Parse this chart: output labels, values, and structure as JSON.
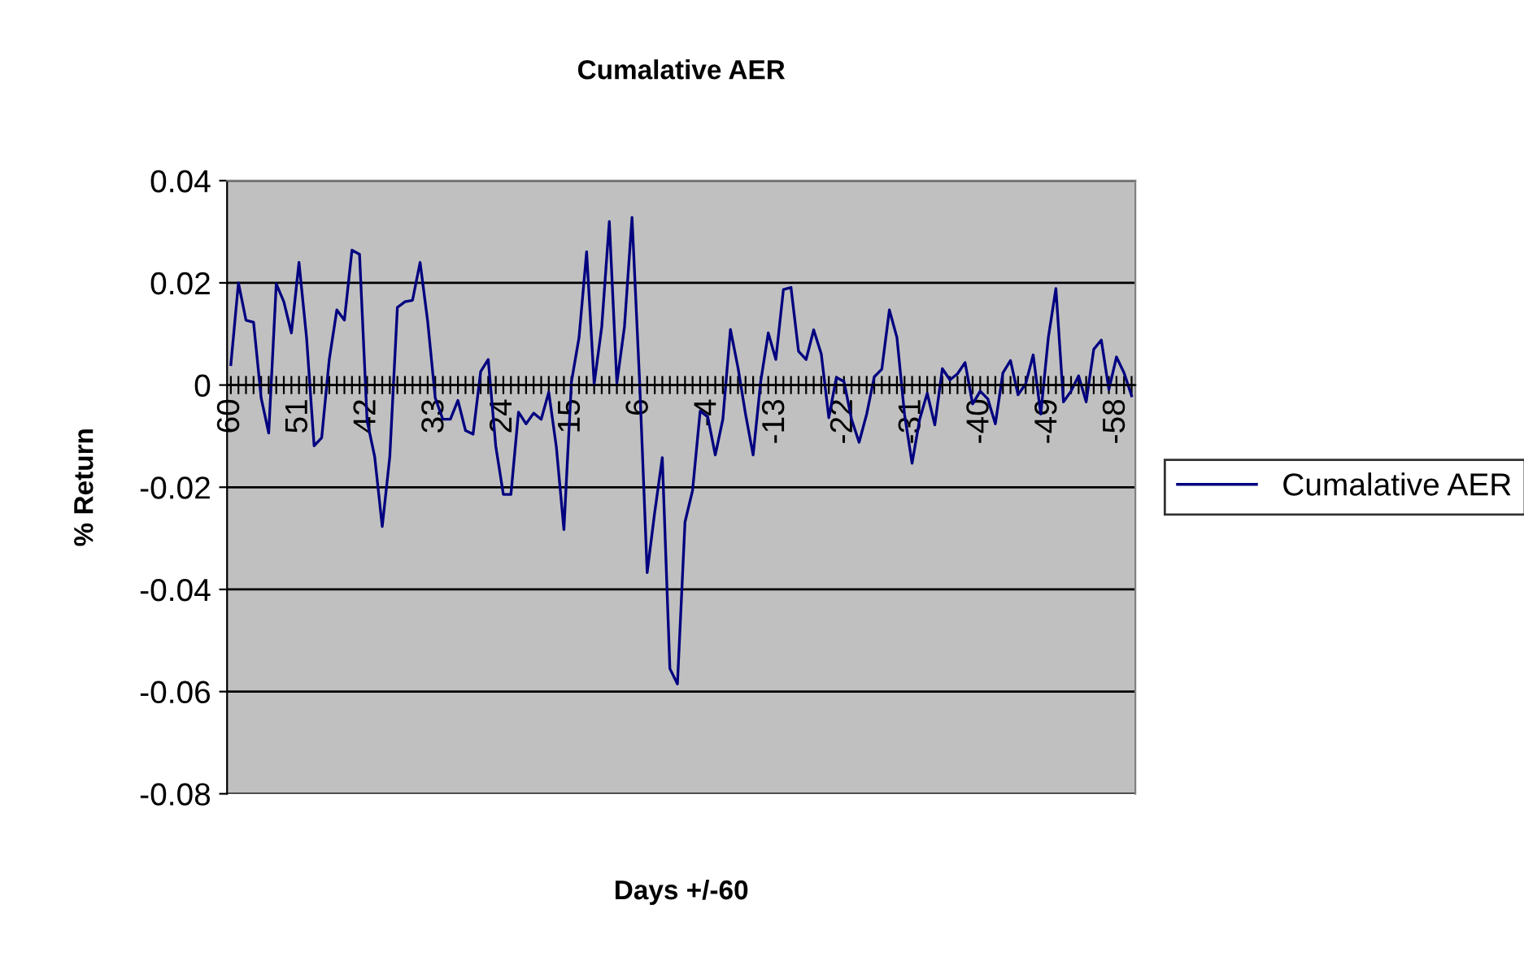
{
  "chart_data": {
    "type": "line",
    "title": "Cumalative AER",
    "xlabel": "Days +/-60",
    "ylabel": "% Return",
    "categories": [
      "60",
      null,
      null,
      null,
      null,
      null,
      null,
      null,
      null,
      "51",
      null,
      null,
      null,
      null,
      null,
      null,
      null,
      null,
      "42",
      null,
      null,
      null,
      null,
      null,
      null,
      null,
      null,
      "33",
      null,
      null,
      null,
      null,
      null,
      null,
      null,
      null,
      "24",
      null,
      null,
      null,
      null,
      null,
      null,
      null,
      null,
      "15",
      null,
      null,
      null,
      null,
      null,
      null,
      null,
      null,
      "6",
      null,
      null,
      null,
      null,
      null,
      null,
      null,
      null,
      "-4",
      null,
      null,
      null,
      null,
      null,
      null,
      null,
      null,
      "-13",
      null,
      null,
      null,
      null,
      null,
      null,
      null,
      null,
      "-22",
      null,
      null,
      null,
      null,
      null,
      null,
      null,
      null,
      "-31",
      null,
      null,
      null,
      null,
      null,
      null,
      null,
      null,
      "-40",
      null,
      null,
      null,
      null,
      null,
      null,
      null,
      null,
      "-49",
      null,
      null,
      null,
      null,
      null,
      null,
      null,
      null,
      "-58",
      null,
      null
    ],
    "series": [
      {
        "name": "Cumalative AER",
        "color": "#000080",
        "values": [
          0.004,
          0.02,
          0.0127,
          0.0123,
          -0.0025,
          -0.0094,
          0.0198,
          0.0163,
          0.0102,
          0.024,
          0.0093,
          -0.0119,
          -0.0103,
          0.005,
          0.0147,
          0.0127,
          0.0264,
          0.0256,
          -0.007,
          -0.014,
          -0.0277,
          -0.014,
          0.0152,
          0.0163,
          0.0166,
          0.024,
          0.0125,
          -0.0025,
          -0.0067,
          -0.0067,
          -0.003,
          -0.0089,
          -0.0096,
          0.0026,
          0.005,
          -0.012,
          -0.0214,
          -0.0214,
          -0.0053,
          -0.0076,
          -0.0055,
          -0.0067,
          -0.0014,
          -0.0121,
          -0.0283,
          0.0007,
          0.0093,
          0.0261,
          0.0002,
          0.0114,
          0.032,
          0.0004,
          0.0114,
          0.0328,
          0.0007,
          -0.0367,
          -0.0249,
          -0.0142,
          -0.0555,
          -0.0585,
          -0.0268,
          -0.0206,
          -0.0051,
          -0.0062,
          -0.0137,
          -0.0067,
          0.0109,
          0.0034,
          -0.0057,
          -0.0137,
          0.0007,
          0.0102,
          0.005,
          0.0187,
          0.0191,
          0.0066,
          0.005,
          0.0108,
          0.0061,
          -0.0064,
          0.0015,
          0.0007,
          -0.0067,
          -0.0112,
          -0.0057,
          0.0016,
          0.0031,
          0.0147,
          0.0093,
          -0.0057,
          -0.0153,
          -0.0067,
          -0.0016,
          -0.0078,
          0.0032,
          0.001,
          0.0022,
          0.0044,
          -0.0037,
          -0.0012,
          -0.0027,
          -0.0076,
          0.0024,
          0.0048,
          -0.0019,
          0.0002,
          0.0059,
          -0.0057,
          0.0093,
          0.0189,
          -0.0033,
          -0.0012,
          0.0018,
          -0.0033,
          0.007,
          0.0088,
          -0.0009,
          0.0055,
          0.0024,
          -0.0021
        ]
      }
    ],
    "ylim": [
      -0.08,
      0.04
    ],
    "yticks": [
      -0.08,
      -0.06,
      -0.04,
      -0.02,
      0,
      0.02,
      0.04
    ],
    "grid": "y",
    "legend": "right",
    "marker": "none",
    "line_style": "solid"
  }
}
